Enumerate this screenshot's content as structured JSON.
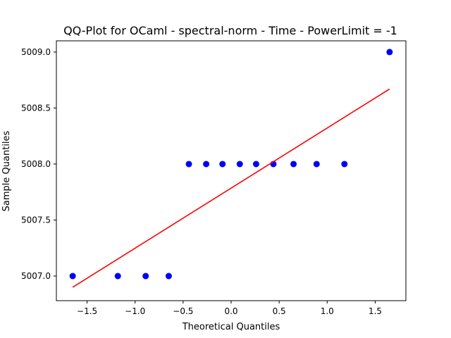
{
  "chart_data": {
    "type": "scatter",
    "title": "QQ-Plot for OCaml - spectral-norm - Time - PowerLimit = -1",
    "xlabel": "Theoretical Quantiles",
    "ylabel": "Sample Quantiles",
    "xlim": [
      -1.82,
      1.82
    ],
    "ylim": [
      5006.78,
      5009.1
    ],
    "xticks": [
      -1.5,
      -1.0,
      -0.5,
      0.0,
      0.5,
      1.0,
      1.5
    ],
    "xtick_labels": [
      "−1.5",
      "−1.0",
      "−0.5",
      "0.0",
      "0.5",
      "1.0",
      "1.5"
    ],
    "yticks": [
      5007.0,
      5007.5,
      5008.0,
      5008.5,
      5009.0
    ],
    "ytick_labels": [
      "5007.0",
      "5007.5",
      "5008.0",
      "5008.5",
      "5009.0"
    ],
    "grid": false,
    "series": [
      {
        "kind": "points",
        "color": "#0000ff",
        "x": [
          -1.65,
          -1.18,
          -0.89,
          -0.65,
          -0.44,
          -0.26,
          -0.09,
          0.09,
          0.26,
          0.44,
          0.65,
          0.89,
          1.18,
          1.65
        ],
        "y": [
          5007.0,
          5007.0,
          5007.0,
          5007.0,
          5008.0,
          5008.0,
          5008.0,
          5008.0,
          5008.0,
          5008.0,
          5008.0,
          5008.0,
          5008.0,
          5009.0
        ]
      },
      {
        "kind": "line",
        "color": "#ff0000",
        "x": [
          -1.65,
          1.65
        ],
        "y": [
          5006.9,
          5008.67
        ]
      }
    ]
  }
}
